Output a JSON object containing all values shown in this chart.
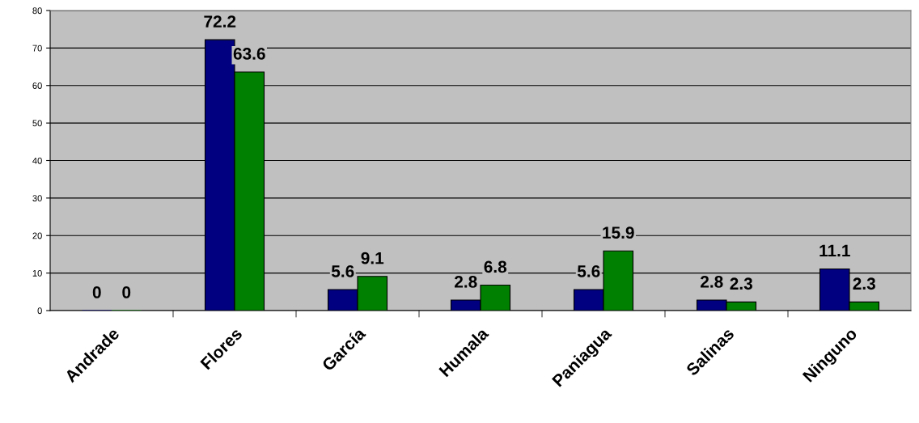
{
  "chart_data": {
    "type": "bar",
    "categories": [
      "Andrade",
      "Flores",
      "García",
      "Humala",
      "Paniagua",
      "Salinas",
      "Ninguno"
    ],
    "series": [
      {
        "color": "#000080",
        "values": [
          0,
          72.2,
          5.6,
          2.8,
          5.6,
          2.8,
          11.1
        ]
      },
      {
        "color": "#008000",
        "values": [
          0,
          63.6,
          9.1,
          6.8,
          15.9,
          2.3,
          2.3
        ]
      }
    ],
    "ylim": [
      0,
      80
    ],
    "yticks": [
      0,
      10,
      20,
      30,
      40,
      50,
      60,
      70,
      80
    ],
    "grid": "y",
    "data_labels": true
  }
}
